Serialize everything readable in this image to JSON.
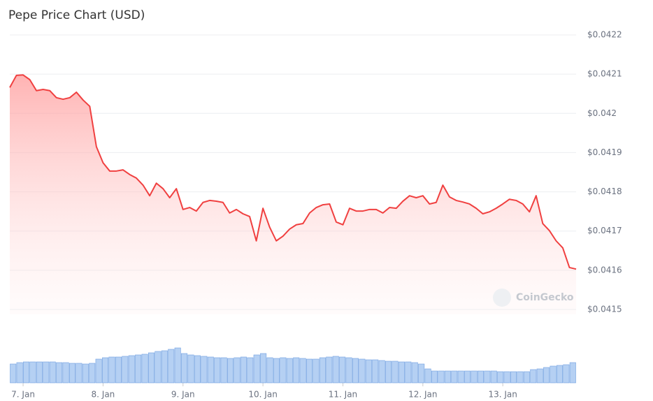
{
  "chart_data": {
    "type": "line",
    "title": "Pepe Price Chart (USD)",
    "watermark": "CoinGecko",
    "series": [
      {
        "name": "Price",
        "color": "#f04040",
        "values": [
          0.042066,
          0.042097,
          0.042098,
          0.042086,
          0.042058,
          0.042061,
          0.042058,
          0.04204,
          0.042036,
          0.04204,
          0.042054,
          0.042034,
          0.042018,
          0.041915,
          0.041874,
          0.041853,
          0.041853,
          0.041856,
          0.041844,
          0.041835,
          0.041817,
          0.04179,
          0.041822,
          0.041808,
          0.041785,
          0.041808,
          0.041755,
          0.04176,
          0.041751,
          0.041773,
          0.041778,
          0.041776,
          0.041773,
          0.041746,
          0.041755,
          0.041744,
          0.041737,
          0.041675,
          0.041758,
          0.04171,
          0.041675,
          0.041687,
          0.041705,
          0.041716,
          0.041719,
          0.041746,
          0.04176,
          0.041767,
          0.041769,
          0.041723,
          0.041716,
          0.041758,
          0.041751,
          0.041751,
          0.041755,
          0.041755,
          0.041746,
          0.04176,
          0.041758,
          0.041776,
          0.04179,
          0.041785,
          0.04179,
          0.041769,
          0.041773,
          0.041817,
          0.041787,
          0.041778,
          0.041774,
          0.041769,
          0.041758,
          0.041744,
          0.041749,
          0.041758,
          0.041769,
          0.041781,
          0.041778,
          0.041769,
          0.041749,
          0.04179,
          0.041719,
          0.041701,
          0.041675,
          0.041657,
          0.041607,
          0.041603
        ]
      }
    ],
    "volume": {
      "color": "#b5d0f3",
      "edge": "#6f9fe0",
      "ylim": [
        0,
        60
      ],
      "values": [
        27,
        29,
        30,
        30,
        30,
        30,
        30,
        29,
        29,
        28,
        28,
        27,
        28,
        34,
        36,
        37,
        37,
        38,
        39,
        40,
        41,
        43,
        45,
        46,
        48,
        50,
        42,
        40,
        39,
        38,
        37,
        36,
        36,
        35,
        36,
        37,
        36,
        40,
        42,
        36,
        35,
        36,
        35,
        36,
        35,
        34,
        34,
        36,
        37,
        38,
        37,
        36,
        35,
        34,
        33,
        33,
        32,
        31,
        31,
        30,
        30,
        29,
        27,
        20,
        17,
        17,
        17,
        17,
        17,
        17,
        17,
        17,
        17,
        17,
        16,
        16,
        16,
        16,
        16,
        19,
        20,
        22,
        24,
        25,
        26,
        29
      ]
    },
    "xlim": [
      0,
      85
    ],
    "xticks": [
      {
        "value": 2,
        "label": "7. Jan"
      },
      {
        "value": 14,
        "label": "8. Jan"
      },
      {
        "value": 26,
        "label": "9. Jan"
      },
      {
        "value": 38,
        "label": "10. Jan"
      },
      {
        "value": 50,
        "label": "11. Jan"
      },
      {
        "value": 62,
        "label": "12. Jan"
      },
      {
        "value": 74,
        "label": "13. Jan"
      }
    ],
    "ylim": [
      0.0415,
      0.0422
    ],
    "yticks": [
      {
        "value": 0.0415,
        "label": "$0.0415"
      },
      {
        "value": 0.0416,
        "label": "$0.0416"
      },
      {
        "value": 0.0417,
        "label": "$0.0417"
      },
      {
        "value": 0.0418,
        "label": "$0.0418"
      },
      {
        "value": 0.0419,
        "label": "$0.0419"
      },
      {
        "value": 0.042,
        "label": "$0.042"
      },
      {
        "value": 0.0421,
        "label": "$0.0421"
      },
      {
        "value": 0.0422,
        "label": "$0.0422"
      }
    ],
    "grid": true
  }
}
